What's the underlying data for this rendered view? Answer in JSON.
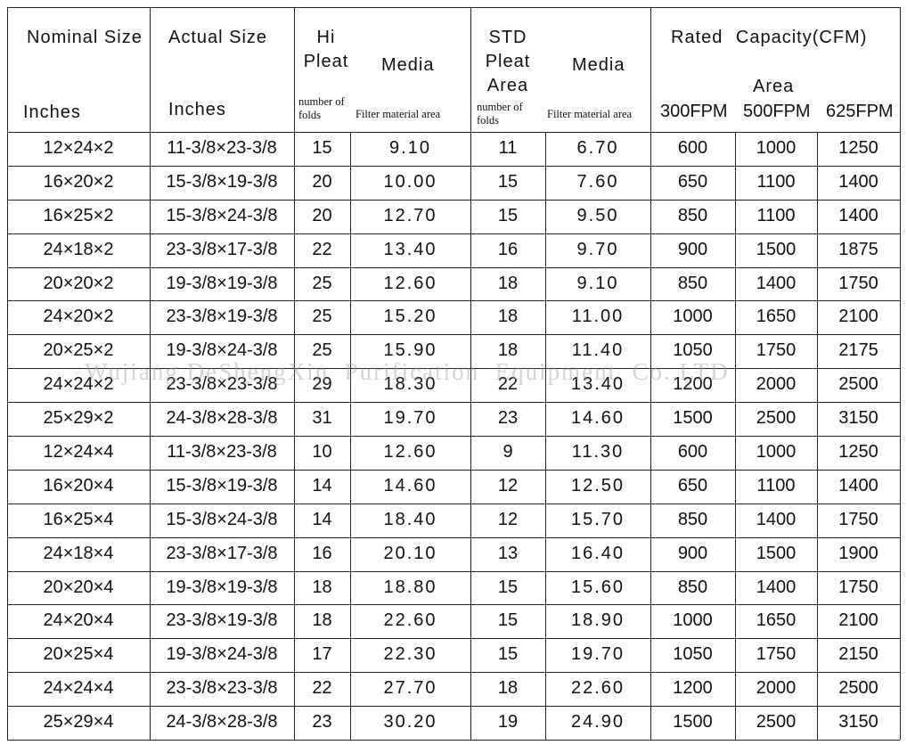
{
  "header": {
    "nominal_size": "Nominal Size",
    "nominal_unit": "Inches",
    "actual_size": "Actual Size",
    "actual_unit": "Inches",
    "hi_pleat": "Hi Pleat",
    "hi_media": "Media",
    "hi_folds": "number of folds",
    "hi_area": "Filter material area",
    "std_pleat": "STD Pleat Area",
    "std_media": "Media",
    "std_folds": "number of folds",
    "std_area": "Filter material area",
    "rated": "Rated Capacity(CFM)",
    "rated_area": "Area",
    "fpm300": "300FPM",
    "fpm500": "500FPM",
    "fpm625": "625FPM"
  },
  "table": {
    "rows": [
      [
        "12×24×2",
        "11-3/8×23-3/8",
        "15",
        "9.10",
        "11",
        "6.70",
        "600",
        "1000",
        "1250"
      ],
      [
        "16×20×2",
        "15-3/8×19-3/8",
        "20",
        "10.00",
        "15",
        "7.60",
        "650",
        "1100",
        "1400"
      ],
      [
        "16×25×2",
        "15-3/8×24-3/8",
        "20",
        "12.70",
        "15",
        "9.50",
        "850",
        "1100",
        "1400"
      ],
      [
        "24×18×2",
        "23-3/8×17-3/8",
        "22",
        "13.40",
        "16",
        "9.70",
        "900",
        "1500",
        "1875"
      ],
      [
        "20×20×2",
        "19-3/8×19-3/8",
        "25",
        "12.60",
        "18",
        "9.10",
        "850",
        "1400",
        "1750"
      ],
      [
        "24×20×2",
        "23-3/8×19-3/8",
        "25",
        "15.20",
        "18",
        "11.00",
        "1000",
        "1650",
        "2100"
      ],
      [
        "20×25×2",
        "19-3/8×24-3/8",
        "25",
        "15.90",
        "18",
        "11.40",
        "1050",
        "1750",
        "2175"
      ],
      [
        "24×24×2",
        "23-3/8×23-3/8",
        "29",
        "18.30",
        "22",
        "13.40",
        "1200",
        "2000",
        "2500"
      ],
      [
        "25×29×2",
        "24-3/8×28-3/8",
        "31",
        "19.70",
        "23",
        "14.60",
        "1500",
        "2500",
        "3150"
      ],
      [
        "12×24×4",
        "11-3/8×23-3/8",
        "10",
        "12.60",
        "9",
        "11.30",
        "600",
        "1000",
        "1250"
      ],
      [
        "16×20×4",
        "15-3/8×19-3/8",
        "14",
        "14.60",
        "12",
        "12.50",
        "650",
        "1100",
        "1400"
      ],
      [
        "16×25×4",
        "15-3/8×24-3/8",
        "14",
        "18.40",
        "12",
        "15.70",
        "850",
        "1400",
        "1750"
      ],
      [
        "24×18×4",
        "23-3/8×17-3/8",
        "16",
        "20.10",
        "13",
        "16.40",
        "900",
        "1500",
        "1900"
      ],
      [
        "20×20×4",
        "19-3/8×19-3/8",
        "18",
        "18.80",
        "15",
        "15.60",
        "850",
        "1400",
        "1750"
      ],
      [
        "24×20×4",
        "23-3/8×19-3/8",
        "18",
        "22.60",
        "15",
        "18.90",
        "1000",
        "1650",
        "2100"
      ],
      [
        "20×25×4",
        "19-3/8×24-3/8",
        "17",
        "22.30",
        "15",
        "19.70",
        "1050",
        "1750",
        "2150"
      ],
      [
        "24×24×4",
        "23-3/8×23-3/8",
        "22",
        "27.70",
        "18",
        "22.60",
        "1200",
        "2000",
        "2500"
      ],
      [
        "25×29×4",
        "24-3/8×28-3/8",
        "23",
        "30.20",
        "19",
        "24.90",
        "1500",
        "2500",
        "3150"
      ]
    ]
  },
  "watermark": "Wujiang DeShengXin  Purification  Equipment  Co.,LTD"
}
